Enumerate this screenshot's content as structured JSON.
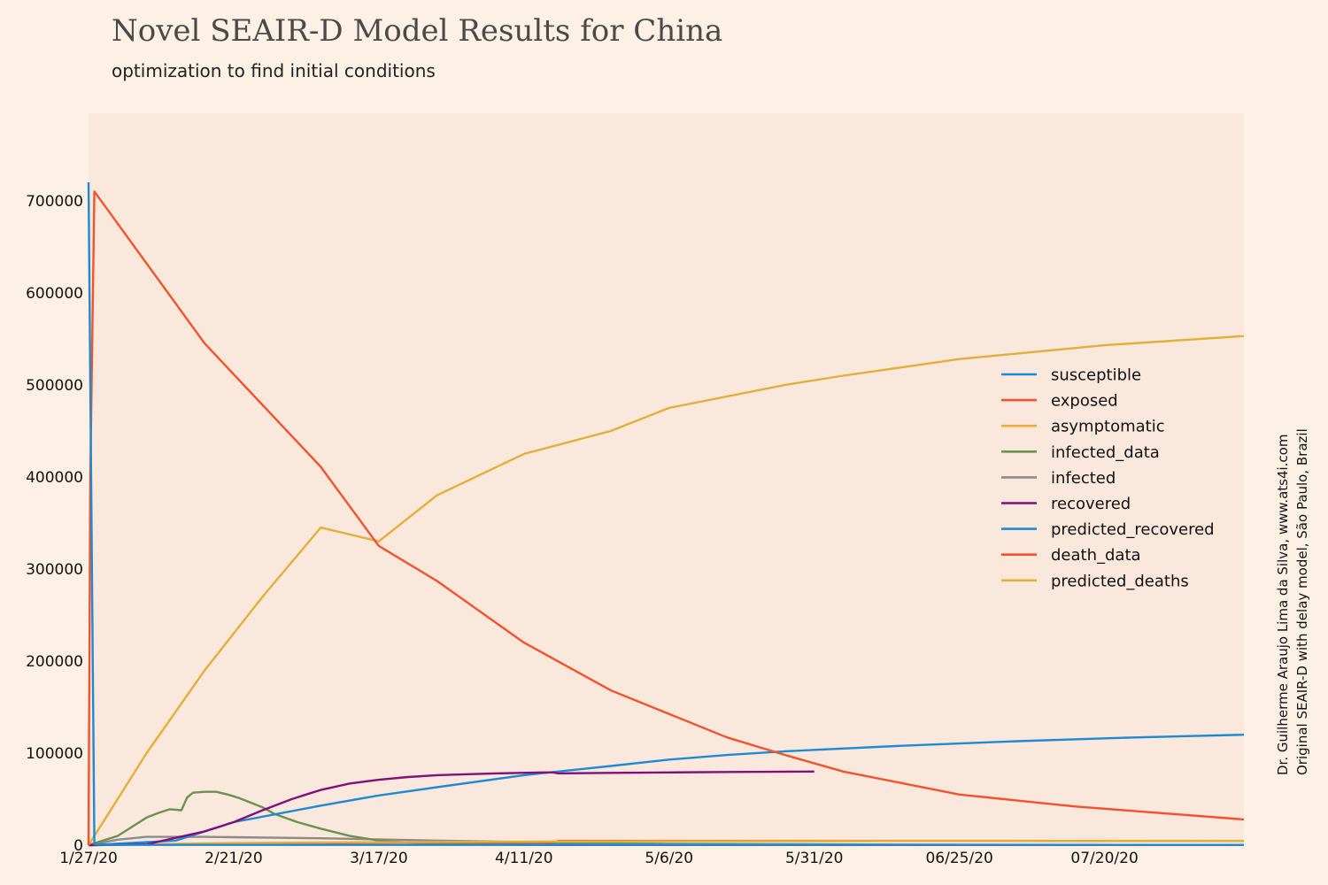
{
  "chart_data": {
    "type": "line",
    "title": "Novel SEAIR-D Model Results for China",
    "subtitle": "optimization to find initial conditions",
    "credit_line1": "Dr. Guilherme Araujo Lima da Silva, www.ats4i.com",
    "credit_line2": "Original SEAIR-D with delay model, São Paulo, Brazil",
    "x_tick_labels": [
      "1/27/20",
      "2/21/20",
      "3/17/20",
      "4/11/20",
      "5/6/20",
      "5/31/20",
      "06/25/20",
      "07/20/20"
    ],
    "x_tick_days": [
      0,
      25,
      50,
      75,
      100,
      125,
      150,
      175
    ],
    "xlim_days": [
      0,
      199
    ],
    "ylim": [
      0,
      795000
    ],
    "y_ticks": [
      0,
      100000,
      200000,
      300000,
      400000,
      500000,
      600000,
      700000
    ],
    "legend_position": "right",
    "series": [
      {
        "name": "susceptible",
        "color": "#1f8ad2",
        "x": [
          0,
          1,
          2,
          10,
          50,
          100,
          199
        ],
        "y": [
          720000,
          1000,
          500,
          300,
          250,
          200,
          200
        ]
      },
      {
        "name": "exposed",
        "color": "#f4512c",
        "x": [
          0,
          0.3,
          1,
          20,
          40,
          50,
          60,
          75,
          90,
          110,
          120,
          130,
          150,
          170,
          199
        ],
        "y": [
          0,
          400000,
          710000,
          545000,
          411000,
          325000,
          287000,
          220000,
          168000,
          117000,
          98000,
          80000,
          55000,
          42000,
          28000
        ]
      },
      {
        "name": "asymptomatic",
        "color": "#e5ae38",
        "x": [
          0,
          10,
          20,
          30,
          40,
          50,
          60,
          75,
          90,
          100,
          120,
          130,
          150,
          175,
          199
        ],
        "y": [
          0,
          100000,
          190000,
          270000,
          345000,
          330000,
          380000,
          425000,
          450000,
          475000,
          500000,
          510000,
          528000,
          543000,
          553000
        ]
      },
      {
        "name": "infected_data",
        "color": "#6d904f",
        "x": [
          0,
          2,
          5,
          8,
          10,
          12,
          14,
          16,
          17,
          18,
          20,
          22,
          24,
          26,
          28,
          30,
          32,
          36,
          40,
          45,
          50,
          55,
          60,
          75,
          100,
          150,
          199
        ],
        "y": [
          0,
          4000,
          10000,
          22000,
          30000,
          35000,
          39000,
          38000,
          52000,
          57000,
          58000,
          58000,
          55000,
          51000,
          46000,
          41000,
          34000,
          25000,
          18000,
          10000,
          5000,
          3000,
          2000,
          1000,
          500,
          300,
          200
        ]
      },
      {
        "name": "infected",
        "color": "#8b8b8b",
        "x": [
          0,
          5,
          10,
          20,
          40,
          60,
          80,
          100,
          150,
          199
        ],
        "y": [
          0,
          6000,
          9000,
          9000,
          7500,
          5000,
          3000,
          1500,
          500,
          200
        ]
      },
      {
        "name": "recovered",
        "color": "#810f7c",
        "x": [
          0,
          10,
          15,
          20,
          25,
          30,
          35,
          38,
          40,
          45,
          50,
          55,
          60,
          70,
          78,
          80,
          81,
          90,
          100,
          110,
          125
        ],
        "y": [
          0,
          1000,
          8000,
          15000,
          25000,
          38000,
          50000,
          56000,
          60000,
          67000,
          71000,
          74000,
          76000,
          78000,
          79000,
          79000,
          78000,
          78500,
          79000,
          79500,
          80000
        ]
      },
      {
        "name": "predicted_recovered",
        "color": "#1f8ad2",
        "x": [
          0,
          15,
          25,
          40,
          50,
          60,
          75,
          90,
          100,
          110,
          120,
          140,
          160,
          180,
          199
        ],
        "y": [
          0,
          5000,
          25000,
          43000,
          54000,
          63000,
          76000,
          86000,
          93000,
          98000,
          102000,
          108000,
          113000,
          117000,
          120000
        ]
      },
      {
        "name": "death_data",
        "color": "#f4512c",
        "x": [
          0,
          20,
          40,
          60,
          80,
          81,
          199
        ],
        "y": [
          0,
          1500,
          2500,
          3000,
          3300,
          4600,
          4600
        ]
      },
      {
        "name": "predicted_deaths",
        "color": "#e5ae38",
        "x": [
          0,
          20,
          40,
          60,
          80,
          100,
          150,
          199
        ],
        "y": [
          0,
          2000,
          3000,
          3500,
          4000,
          4200,
          4500,
          4600
        ]
      }
    ]
  }
}
